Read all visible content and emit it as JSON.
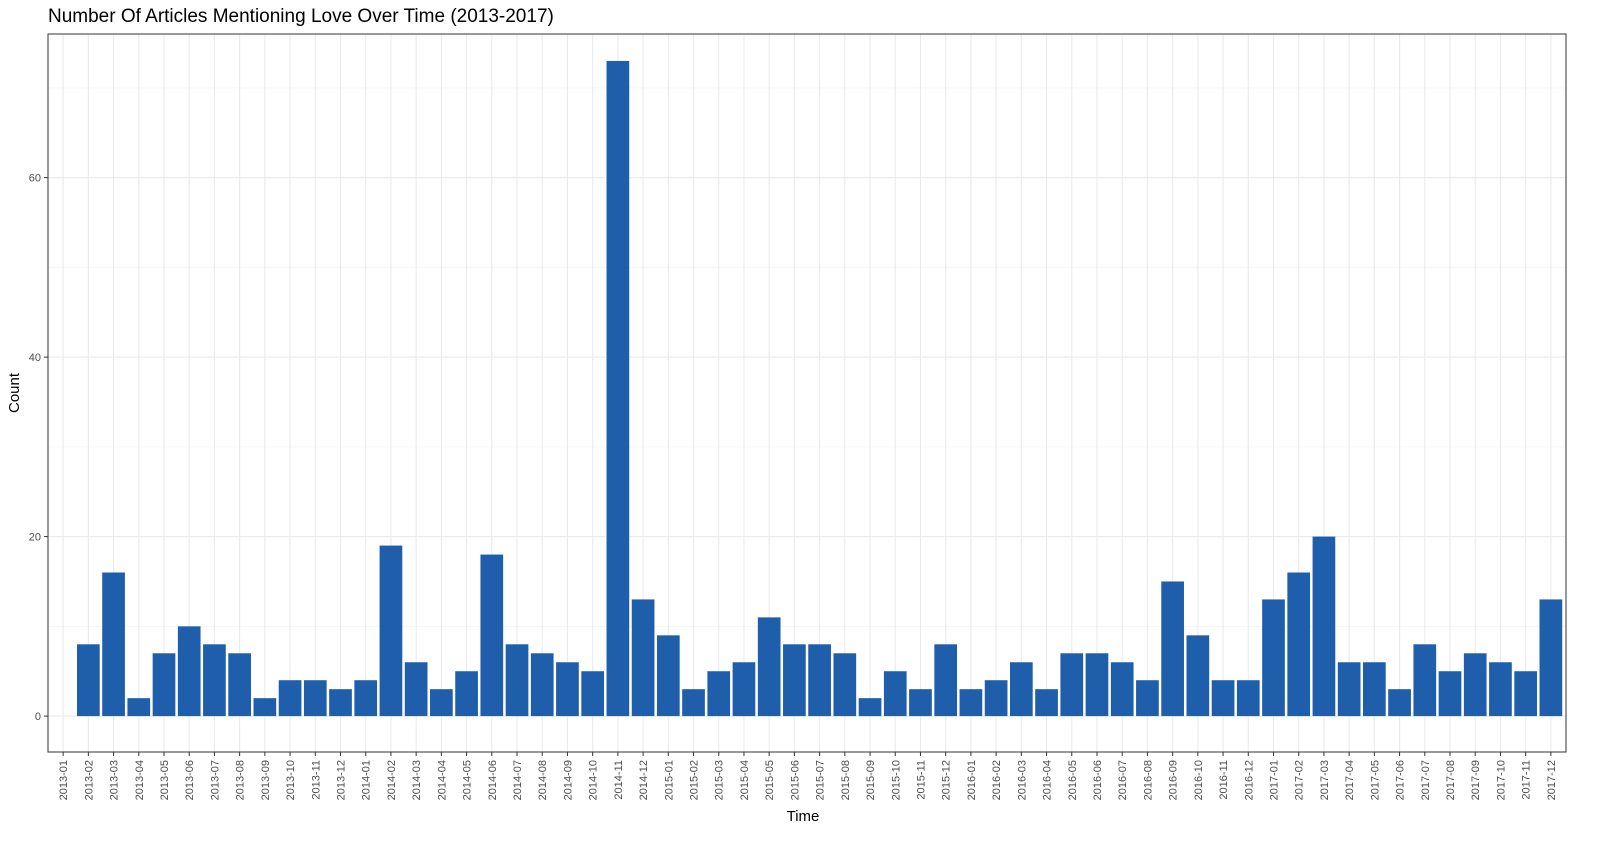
{
  "chart_data": {
    "type": "bar",
    "title": "Number Of Articles Mentioning Love Over Time (2013-2017)",
    "xlabel": "Time",
    "ylabel": "Count",
    "ylim": [
      -4,
      76
    ],
    "yticks": [
      0,
      20,
      40,
      60
    ],
    "grid": true,
    "legend": "none",
    "bar_color": "#1f5eab",
    "categories": [
      "2013-01",
      "2013-02",
      "2013-03",
      "2013-04",
      "2013-05",
      "2013-06",
      "2013-07",
      "2013-08",
      "2013-09",
      "2013-10",
      "2013-11",
      "2013-12",
      "2014-01",
      "2014-02",
      "2014-03",
      "2014-04",
      "2014-05",
      "2014-06",
      "2014-07",
      "2014-08",
      "2014-09",
      "2014-10",
      "2014-11",
      "2014-12",
      "2015-01",
      "2015-02",
      "2015-03",
      "2015-04",
      "2015-05",
      "2015-06",
      "2015-07",
      "2015-08",
      "2015-09",
      "2015-10",
      "2015-11",
      "2015-12",
      "2016-01",
      "2016-02",
      "2016-03",
      "2016-04",
      "2016-05",
      "2016-06",
      "2016-07",
      "2016-08",
      "2016-09",
      "2016-10",
      "2016-11",
      "2016-12",
      "2017-01",
      "2017-02",
      "2017-03",
      "2017-04",
      "2017-05",
      "2017-06",
      "2017-07",
      "2017-08",
      "2017-09",
      "2017-10",
      "2017-11",
      "2017-12"
    ],
    "values": [
      0,
      8,
      16,
      2,
      7,
      10,
      8,
      7,
      2,
      4,
      4,
      3,
      4,
      19,
      6,
      3,
      5,
      18,
      8,
      7,
      6,
      5,
      73,
      13,
      9,
      3,
      5,
      6,
      11,
      8,
      8,
      7,
      2,
      5,
      3,
      8,
      3,
      4,
      6,
      3,
      7,
      7,
      6,
      4,
      15,
      9,
      4,
      4,
      13,
      16,
      20,
      6,
      6,
      3,
      8,
      5,
      7,
      6,
      5,
      13
    ]
  }
}
